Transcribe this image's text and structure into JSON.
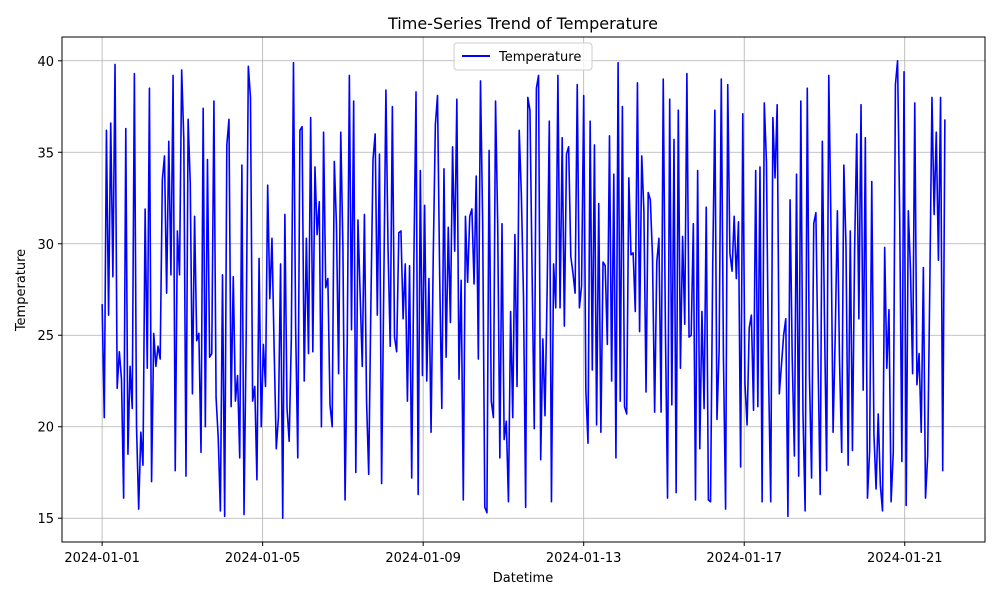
{
  "chart_data": {
    "type": "line",
    "title": "Time-Series Trend of Temperature",
    "xlabel": "Datetime",
    "ylabel": "Temperature",
    "x_start": "2024-01-01",
    "x_end": "2024-01-22",
    "xlim": [
      "2023-12-31T00:00",
      "2024-01-23T00:00"
    ],
    "ylim": [
      13.7,
      41.3
    ],
    "x_ticks": [
      "2024-01-01",
      "2024-01-05",
      "2024-01-09",
      "2024-01-13",
      "2024-01-17",
      "2024-01-21"
    ],
    "y_ticks": [
      15,
      20,
      25,
      30,
      35,
      40
    ],
    "grid": true,
    "legend_position": "top-center",
    "series": [
      {
        "name": "Temperature",
        "color": "#0000ff",
        "values": [
          26.7,
          20.5,
          36.2,
          26.1,
          36.6,
          28.2,
          39.8,
          22.1,
          24.1,
          22.6,
          16.1,
          36.3,
          18.5,
          23.3,
          21.0,
          39.3,
          20.0,
          15.5,
          19.7,
          17.9,
          31.9,
          23.2,
          38.5,
          17.0,
          25.1,
          23.3,
          24.4,
          23.7,
          33.5,
          34.8,
          27.3,
          35.6,
          28.3,
          39.2,
          17.6,
          30.7,
          28.3,
          39.5,
          35.7,
          17.3,
          36.8,
          33.3,
          21.8,
          31.5,
          24.7,
          25.1,
          18.6,
          37.4,
          20.0,
          34.6,
          23.8,
          24.0,
          37.8,
          21.6,
          19.4,
          15.4,
          28.3,
          15.1,
          35.4,
          36.8,
          21.1,
          28.2,
          21.4,
          22.8,
          18.3,
          34.3,
          15.2,
          24.9,
          39.7,
          38.0,
          21.4,
          22.2,
          17.1,
          29.2,
          20.0,
          24.5,
          22.2,
          33.2,
          27.0,
          30.3,
          24.3,
          18.8,
          20.5,
          28.9,
          15.0,
          31.6,
          21.0,
          19.2,
          24.8,
          39.9,
          25.5,
          18.3,
          36.2,
          36.4,
          22.5,
          30.3,
          24.0,
          36.9,
          24.1,
          34.2,
          30.5,
          32.3,
          20.0,
          36.1,
          27.6,
          28.1,
          21.2,
          20.0,
          34.5,
          31.0,
          22.9,
          36.1,
          29.8,
          16.0,
          24.4,
          39.2,
          25.3,
          37.8,
          17.5,
          31.3,
          27.3,
          23.3,
          31.6,
          21.4,
          17.4,
          26.6,
          34.6,
          36.0,
          26.1,
          34.9,
          16.9,
          27.6,
          38.4,
          29.7,
          24.4,
          37.5,
          24.9,
          24.1,
          30.6,
          30.7,
          25.9,
          28.9,
          21.4,
          28.8,
          17.2,
          29.0,
          38.3,
          16.3,
          34.0,
          22.8,
          32.1,
          22.5,
          28.1,
          19.7,
          29.2,
          36.5,
          38.1,
          28.3,
          21.0,
          34.1,
          23.8,
          30.9,
          25.7,
          35.3,
          29.6,
          37.9,
          22.6,
          28.0,
          16.0,
          31.5,
          27.9,
          31.5,
          31.9,
          27.8,
          33.7,
          23.7,
          38.9,
          31.2,
          15.6,
          15.3,
          35.1,
          21.4,
          20.5,
          37.8,
          31.1,
          18.3,
          31.1,
          19.3,
          20.3,
          15.9,
          26.3,
          20.5,
          30.5,
          22.2,
          36.2,
          32.7,
          27.1,
          15.6,
          38.0,
          37.3,
          28.4,
          19.9,
          38.5,
          39.2,
          18.2,
          24.8,
          20.6,
          27.5,
          36.7,
          15.9,
          28.9,
          26.5,
          39.2,
          26.5,
          35.8,
          25.5,
          34.9,
          35.3,
          29.3,
          28.4,
          27.3,
          38.7,
          26.5,
          27.7,
          38.1,
          22.0,
          19.1,
          36.7,
          23.1,
          35.4,
          20.1,
          32.2,
          19.7,
          29.0,
          28.8,
          24.5,
          35.9,
          22.5,
          33.8,
          18.3,
          39.9,
          21.4,
          37.5,
          21.1,
          20.7,
          33.6,
          29.4,
          29.5,
          26.3,
          38.8,
          25.2,
          34.8,
          31.8,
          21.9,
          32.8,
          32.4,
          29.3,
          20.8,
          29.0,
          30.3,
          20.8,
          39.0,
          25.4,
          16.1,
          37.9,
          21.2,
          35.7,
          16.4,
          37.3,
          23.2,
          30.4,
          25.6,
          39.3,
          24.9,
          25.0,
          31.1,
          16.0,
          34.0,
          18.8,
          26.3,
          21.0,
          32.0,
          16.0,
          15.9,
          28.7,
          37.3,
          20.4,
          24.2,
          39.0,
          23.8,
          15.5,
          38.7,
          29.5,
          28.5,
          31.5,
          28.1,
          31.2,
          17.8,
          37.1,
          22.4,
          20.1,
          25.4,
          26.1,
          20.9,
          34.0,
          21.1,
          34.2,
          15.9,
          37.7,
          34.5,
          22.8,
          15.9,
          36.9,
          33.6,
          37.6,
          21.8,
          23.4,
          25.0,
          25.9,
          15.1,
          32.4,
          23.7,
          18.4,
          33.8,
          17.3,
          37.8,
          20.7,
          15.4,
          38.5,
          22.8,
          17.2,
          31.1,
          31.7,
          23.6,
          16.3,
          35.6,
          25.8,
          17.6,
          39.2,
          31.2,
          19.7,
          25.0,
          31.8,
          23.6,
          18.6,
          34.3,
          29.9,
          17.9,
          30.7,
          18.7,
          29.6,
          36.0,
          25.9,
          37.6,
          22.0,
          35.8,
          16.1,
          18.7,
          33.4,
          19.6,
          16.6,
          20.7,
          16.8,
          15.4,
          29.8,
          23.2,
          26.4,
          15.9,
          18.6,
          38.7,
          40.0,
          31.4,
          18.1,
          39.4,
          15.7,
          31.8,
          28.6,
          22.9,
          37.7,
          22.3,
          24.0,
          19.7,
          28.7,
          16.1,
          18.4,
          27.8,
          38.0,
          31.6,
          36.1,
          29.1,
          38.0,
          17.6,
          36.8
        ]
      }
    ]
  }
}
